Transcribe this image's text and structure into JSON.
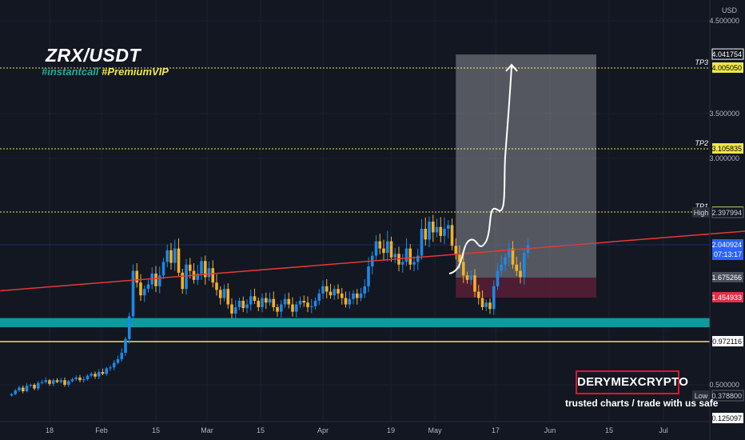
{
  "title": "ZRX/USDT",
  "tags": {
    "first": "#instantcall",
    "second": "#PremiumVIP"
  },
  "brand": {
    "name": "DERYMEXCRYPTO",
    "tagline": "trusted charts / trade with us safe"
  },
  "colors": {
    "background": "#131722",
    "up": "#1e88e5",
    "down": "#f5b026",
    "support_zone": "#0e9a9e",
    "trendline": "#e53935",
    "target_line": "#f0e64a",
    "current_price": "#2962ff",
    "stop_label": "#e0304a"
  },
  "chart_data": {
    "type": "candlestick",
    "pair": "ZRX/USDT",
    "currency": "USD",
    "y_ticks": [
      "4.500000",
      "3.500000",
      "3.000000",
      "0.500000"
    ],
    "x_ticks": [
      "18",
      "Feb",
      "15",
      "Mar",
      "15",
      "Apr",
      "19",
      "May",
      "17",
      "Jun",
      "15",
      "Jul"
    ],
    "levels": [
      {
        "name": "TP3",
        "value": "4.005050"
      },
      {
        "name": "TP2",
        "value": "3.105835"
      },
      {
        "name": "TP1",
        "value": "2.404175"
      },
      {
        "name": "support",
        "value": "0.972116"
      }
    ],
    "price_labels": {
      "top": "4.041754",
      "high_label": "High",
      "high_value": "2.397994",
      "current": "2.040924",
      "countdown": "07:13:17",
      "entry": "1.675266",
      "stop": "1.454933",
      "low_label": "Low",
      "low_value": "0.378800",
      "bottom_partial": "0.125097"
    },
    "support_zone_range": [
      1.13,
      1.23
    ],
    "trendline": {
      "start_date": "2021-01-05",
      "start_value": 1.53,
      "end_date": "2021-07-31",
      "end_value": 2.23
    },
    "target_box": {
      "from_date": "2021-05-05",
      "to_date": "2021-06-11",
      "entry": 1.675266,
      "target": 4.041754,
      "stop": 1.454933
    },
    "candles_start_date": "2021-01-08",
    "candles_interval_days": 1,
    "closes": [
      0.4,
      0.44,
      0.47,
      0.43,
      0.49,
      0.5,
      0.46,
      0.52,
      0.53,
      0.55,
      0.51,
      0.55,
      0.53,
      0.55,
      0.5,
      0.54,
      0.56,
      0.58,
      0.55,
      0.56,
      0.6,
      0.62,
      0.59,
      0.64,
      0.62,
      0.68,
      0.69,
      0.74,
      0.78,
      0.85,
      1.0,
      1.25,
      1.75,
      1.62,
      1.48,
      1.55,
      1.6,
      1.72,
      1.58,
      1.7,
      1.85,
      1.98,
      1.84,
      2.0,
      1.73,
      1.55,
      1.82,
      1.75,
      1.65,
      1.72,
      1.86,
      1.68,
      1.78,
      1.62,
      1.54,
      1.45,
      1.55,
      1.38,
      1.28,
      1.35,
      1.42,
      1.34,
      1.38,
      1.47,
      1.42,
      1.35,
      1.45,
      1.4,
      1.44,
      1.35,
      1.3,
      1.38,
      1.44,
      1.38,
      1.3,
      1.38,
      1.42,
      1.4,
      1.35,
      1.36,
      1.42,
      1.5,
      1.58,
      1.52,
      1.48,
      1.55,
      1.5,
      1.45,
      1.38,
      1.44,
      1.5,
      1.45,
      1.5,
      1.58,
      1.8,
      1.92,
      2.08,
      2.0,
      1.95,
      2.08,
      1.9,
      1.94,
      1.82,
      1.85,
      2.0,
      1.82,
      1.85,
      1.92,
      2.22,
      2.1,
      2.3,
      2.18,
      2.24,
      2.14,
      2.22,
      2.26,
      2.03,
      1.94,
      1.85,
      1.7,
      1.65,
      1.7,
      1.52,
      1.45,
      1.35,
      1.4,
      1.33,
      1.58,
      1.75,
      1.82,
      1.9,
      2.0,
      1.82,
      1.75,
      1.68,
      1.95,
      2.04
    ]
  }
}
